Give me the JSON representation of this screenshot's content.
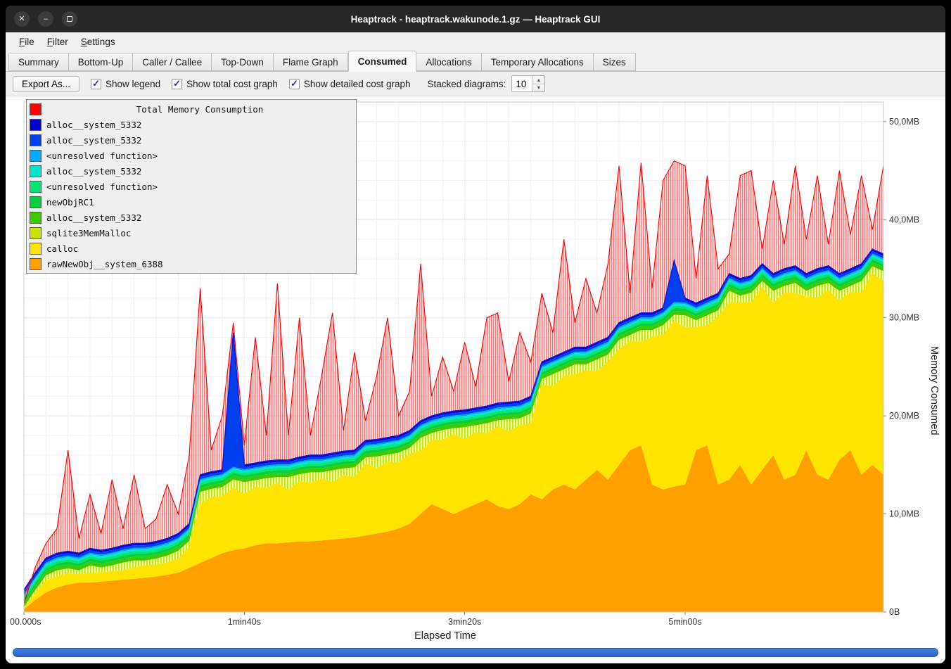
{
  "window": {
    "title": "Heaptrack - heaptrack.wakunode.1.gz — Heaptrack GUI"
  },
  "icons": {
    "close": "✕",
    "minimize": "–",
    "check": "✓",
    "spin_up": "▴",
    "spin_down": "▾"
  },
  "menu": {
    "items": [
      {
        "label": "File",
        "mnemonic": "F",
        "rest": "ile"
      },
      {
        "label": "Filter",
        "mnemonic": "F",
        "rest": "ilter"
      },
      {
        "label": "Settings",
        "mnemonic": "S",
        "rest": "ettings"
      }
    ]
  },
  "tabs": [
    {
      "label": "Summary",
      "active": false
    },
    {
      "label": "Bottom-Up",
      "active": false
    },
    {
      "label": "Caller / Callee",
      "active": false
    },
    {
      "label": "Top-Down",
      "active": false
    },
    {
      "label": "Flame Graph",
      "active": false
    },
    {
      "label": "Consumed",
      "active": true
    },
    {
      "label": "Allocations",
      "active": false
    },
    {
      "label": "Temporary Allocations",
      "active": false
    },
    {
      "label": "Sizes",
      "active": false
    }
  ],
  "toolbar": {
    "export_label": "Export As...",
    "checkboxes": [
      {
        "label": "Show legend",
        "checked": true
      },
      {
        "label": "Show total cost graph",
        "checked": true
      },
      {
        "label": "Show detailed cost graph",
        "checked": true
      }
    ],
    "stacked_label": "Stacked diagrams:",
    "stacked_value": "10"
  },
  "chart_data": {
    "type": "area",
    "title": "Total Memory Consumption",
    "xlabel": "Elapsed Time",
    "ylabel": "Memory Consumed",
    "xlim": [
      0,
      390
    ],
    "ylim": [
      0,
      52
    ],
    "sample_interval_s": 5,
    "x_ticks": [
      {
        "t": 0,
        "label": "00.000s"
      },
      {
        "t": 100,
        "label": "1min40s"
      },
      {
        "t": 200,
        "label": "3min20s"
      },
      {
        "t": 300,
        "label": "5min00s"
      }
    ],
    "y_ticks": [
      {
        "v": 0,
        "label": "0B"
      },
      {
        "v": 10,
        "label": "10,0MB"
      },
      {
        "v": 20,
        "label": "20,0MB"
      },
      {
        "v": 30,
        "label": "30,0MB"
      },
      {
        "v": 40,
        "label": "40,0MB"
      },
      {
        "v": 50,
        "label": "50,0MB"
      }
    ],
    "series": [
      {
        "name": "rawNewObj__system_6388",
        "color": "#ffa000",
        "values": [
          0.3,
          1.2,
          2.0,
          2.5,
          2.8,
          3.0,
          3.0,
          3.1,
          3.2,
          3.3,
          3.4,
          3.5,
          3.6,
          3.8,
          4.0,
          4.5,
          5.0,
          5.5,
          6.0,
          6.3,
          6.5,
          6.8,
          7.0,
          7.0,
          7.1,
          7.2,
          7.2,
          7.3,
          7.4,
          7.5,
          7.6,
          7.8,
          8.0,
          8.2,
          8.5,
          9.0,
          10.0,
          11.0,
          10.5,
          10.0,
          10.5,
          11.0,
          11.5,
          10.8,
          10.5,
          11.0,
          12.0,
          11.5,
          12.5,
          13.0,
          12.5,
          13.5,
          14.5,
          13.5,
          15.0,
          16.5,
          17.0,
          13.0,
          12.5,
          12.8,
          13.0,
          16.5,
          17.0,
          13.0,
          13.5,
          15.0,
          13.0,
          14.5,
          16.0,
          13.5,
          14.0,
          16.5,
          14.0,
          13.5,
          15.5,
          16.5,
          14.0,
          15.0,
          14.0
        ]
      },
      {
        "name": "calloc",
        "color": "#ffe400",
        "values": [
          0.15,
          0.7,
          1.25,
          1.15,
          1.15,
          0.85,
          0.95,
          0.95,
          0.95,
          0.95,
          1.15,
          1.25,
          1.25,
          1.25,
          1.45,
          2.15,
          6.05,
          6.25,
          5.75,
          6.4,
          5.55,
          5.95,
          5.65,
          6.15,
          5.35,
          6.15,
          5.95,
          6.35,
          5.85,
          6.45,
          6.15,
          7.35,
          6.65,
          7.15,
          6.75,
          7.15,
          6.45,
          6.55,
          7.05,
          8.15,
          7.15,
          7.35,
          6.75,
          8.15,
          7.95,
          8.05,
          7.25,
          11.65,
          10.55,
          11.05,
          11.75,
          11.15,
          10.05,
          12.05,
          11.75,
          11.15,
          10.55,
          15.05,
          15.75,
          16.9,
          16.05,
          12.55,
          12.25,
          17.15,
          18.05,
          16.55,
          18.55,
          18.65,
          15.55,
          19.05,
          18.55,
          15.65,
          18.05,
          19.35,
          16.25,
          16.15,
          18.55,
          19.55,
          19.75
        ]
      },
      {
        "name": "sqlite3MemMalloc",
        "color": "#c8e400",
        "hatch": true,
        "values": [
          0.05,
          0.3,
          0.5,
          0.6,
          0.5,
          0.4,
          0.8,
          0.5,
          0.6,
          0.8,
          0.7,
          0.5,
          0.6,
          0.7,
          0.8,
          0.6,
          1.2,
          0.8,
          1.0,
          0.8,
          1.2,
          0.7,
          1.0,
          0.6,
          1.3,
          0.7,
          1.1,
          0.6,
          1.2,
          0.7,
          1.0,
          0.6,
          1.2,
          0.7,
          1.0,
          0.6,
          1.3,
          0.7,
          1.0,
          0.6,
          1.2,
          0.7,
          1.0,
          0.6,
          1.2,
          0.7,
          1.0,
          0.6,
          1.2,
          0.7,
          1.0,
          0.6,
          1.2,
          0.7,
          1.0,
          0.6,
          1.2,
          0.7,
          1.0,
          0.6,
          1.2,
          0.7,
          1.0,
          0.6,
          1.2,
          0.7,
          1.0,
          0.6,
          1.2,
          0.7,
          1.0,
          0.6,
          1.2,
          0.7,
          1.0,
          0.6,
          1.2,
          0.7,
          1.0
        ]
      },
      {
        "name": "alloc__system_5332",
        "color": "#40c800",
        "constant": 0.4
      },
      {
        "name": "newObjRC1",
        "color": "#00d040",
        "constant": 0.3
      },
      {
        "name": "<unresolved function>",
        "color": "#00e677",
        "constant": 0.25
      },
      {
        "name": "alloc__system_5332",
        "color": "#00e6cd",
        "constant": 0.2
      },
      {
        "name": "<unresolved function>",
        "color": "#00aaff",
        "constant": 0.15
      },
      {
        "name": "alloc__system_5332",
        "color": "#0040ee",
        "values": [
          0.25,
          0.25,
          0.25,
          0.25,
          0.25,
          0.25,
          0.25,
          0.25,
          0.25,
          0.25,
          0.25,
          0.25,
          0.25,
          0.25,
          0.25,
          0.25,
          0.25,
          0.25,
          0.25,
          13.5,
          0.25,
          0.25,
          0.25,
          0.25,
          0.25,
          0.25,
          0.25,
          0.25,
          0.25,
          0.25,
          0.25,
          0.25,
          0.25,
          0.25,
          0.25,
          0.25,
          0.25,
          0.25,
          0.25,
          0.25,
          0.25,
          0.25,
          0.25,
          0.25,
          0.25,
          0.25,
          0.25,
          0.25,
          0.25,
          0.25,
          0.25,
          0.25,
          0.25,
          0.25,
          0.25,
          0.25,
          0.25,
          0.25,
          0.25,
          4.0,
          0.25,
          0.25,
          0.25,
          0.25,
          0.25,
          0.25,
          0.25,
          0.25,
          0.25,
          0.25,
          0.25,
          0.25,
          0.25,
          0.25,
          0.25,
          0.25,
          0.25,
          0.25,
          0.25
        ]
      },
      {
        "name": "alloc__system_5332",
        "color": "#0000d0",
        "constant": 0.2
      }
    ],
    "total": {
      "name": "Total Memory Consumption",
      "color": "#ff0000",
      "values": [
        0.8,
        4.5,
        7.0,
        8.5,
        16.5,
        7.5,
        12.0,
        8.0,
        13.5,
        8.5,
        14.0,
        8.5,
        9.5,
        13.0,
        10.0,
        16.0,
        33.0,
        16.5,
        20.0,
        29.5,
        17.0,
        28.0,
        18.0,
        33.5,
        18.0,
        30.0,
        18.0,
        24.0,
        30.5,
        18.5,
        26.5,
        19.5,
        24.0,
        30.0,
        20.0,
        22.5,
        35.5,
        22.0,
        26.0,
        22.5,
        27.5,
        23.0,
        30.0,
        30.5,
        23.5,
        28.5,
        25.5,
        32.5,
        28.5,
        38.0,
        29.5,
        34.0,
        30.5,
        35.5,
        45.5,
        32.5,
        45.8,
        33.0,
        44.0,
        46.0,
        45.5,
        34.0,
        44.5,
        35.0,
        36.5,
        44.5,
        45.0,
        37.0,
        44.0,
        37.5,
        45.5,
        38.0,
        44.5,
        37.5,
        45.0,
        38.5,
        44.5,
        39.0,
        45.5
      ]
    }
  }
}
